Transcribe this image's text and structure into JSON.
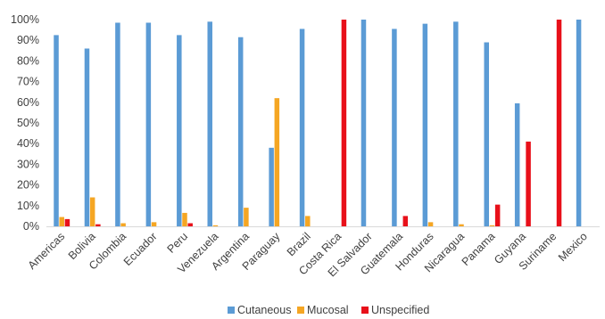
{
  "chart_data": {
    "type": "bar",
    "title": "",
    "xlabel": "",
    "ylabel": "",
    "ylim": [
      0,
      100
    ],
    "y_ticks": [
      "0%",
      "10%",
      "20%",
      "30%",
      "40%",
      "50%",
      "60%",
      "70%",
      "80%",
      "90%",
      "100%"
    ],
    "grid": false,
    "legend_position": "bottom",
    "categories": [
      "Americas",
      "Bolivia",
      "Colombia",
      "Ecuador",
      "Peru",
      "Venezuela",
      "Argentina",
      "Paraguay",
      "Brazil",
      "Costa Rica",
      "El Salvador",
      "Guatemala",
      "Honduras",
      "Nicaragua",
      "Panama",
      "Guyana",
      "Suriname",
      "Mexico"
    ],
    "series": [
      {
        "name": "Cutaneous",
        "color": "#5B9BD5",
        "values": [
          92.5,
          86,
          98.5,
          98.5,
          92.5,
          99,
          91.5,
          38,
          95.5,
          0,
          100,
          95.5,
          98,
          99,
          89,
          59.5,
          0,
          100
        ]
      },
      {
        "name": "Mucosal",
        "color": "#F5A623",
        "values": [
          4.5,
          14,
          1.5,
          2,
          6.5,
          0.5,
          9,
          62,
          5,
          0,
          0,
          0,
          2,
          1,
          0.5,
          0,
          0,
          0
        ]
      },
      {
        "name": "Unspecified",
        "color": "#E8101A",
        "values": [
          3.5,
          1,
          0,
          0,
          1.5,
          0,
          0,
          0,
          0,
          100,
          0,
          5,
          0,
          0,
          10.5,
          41,
          100,
          0
        ]
      }
    ]
  }
}
